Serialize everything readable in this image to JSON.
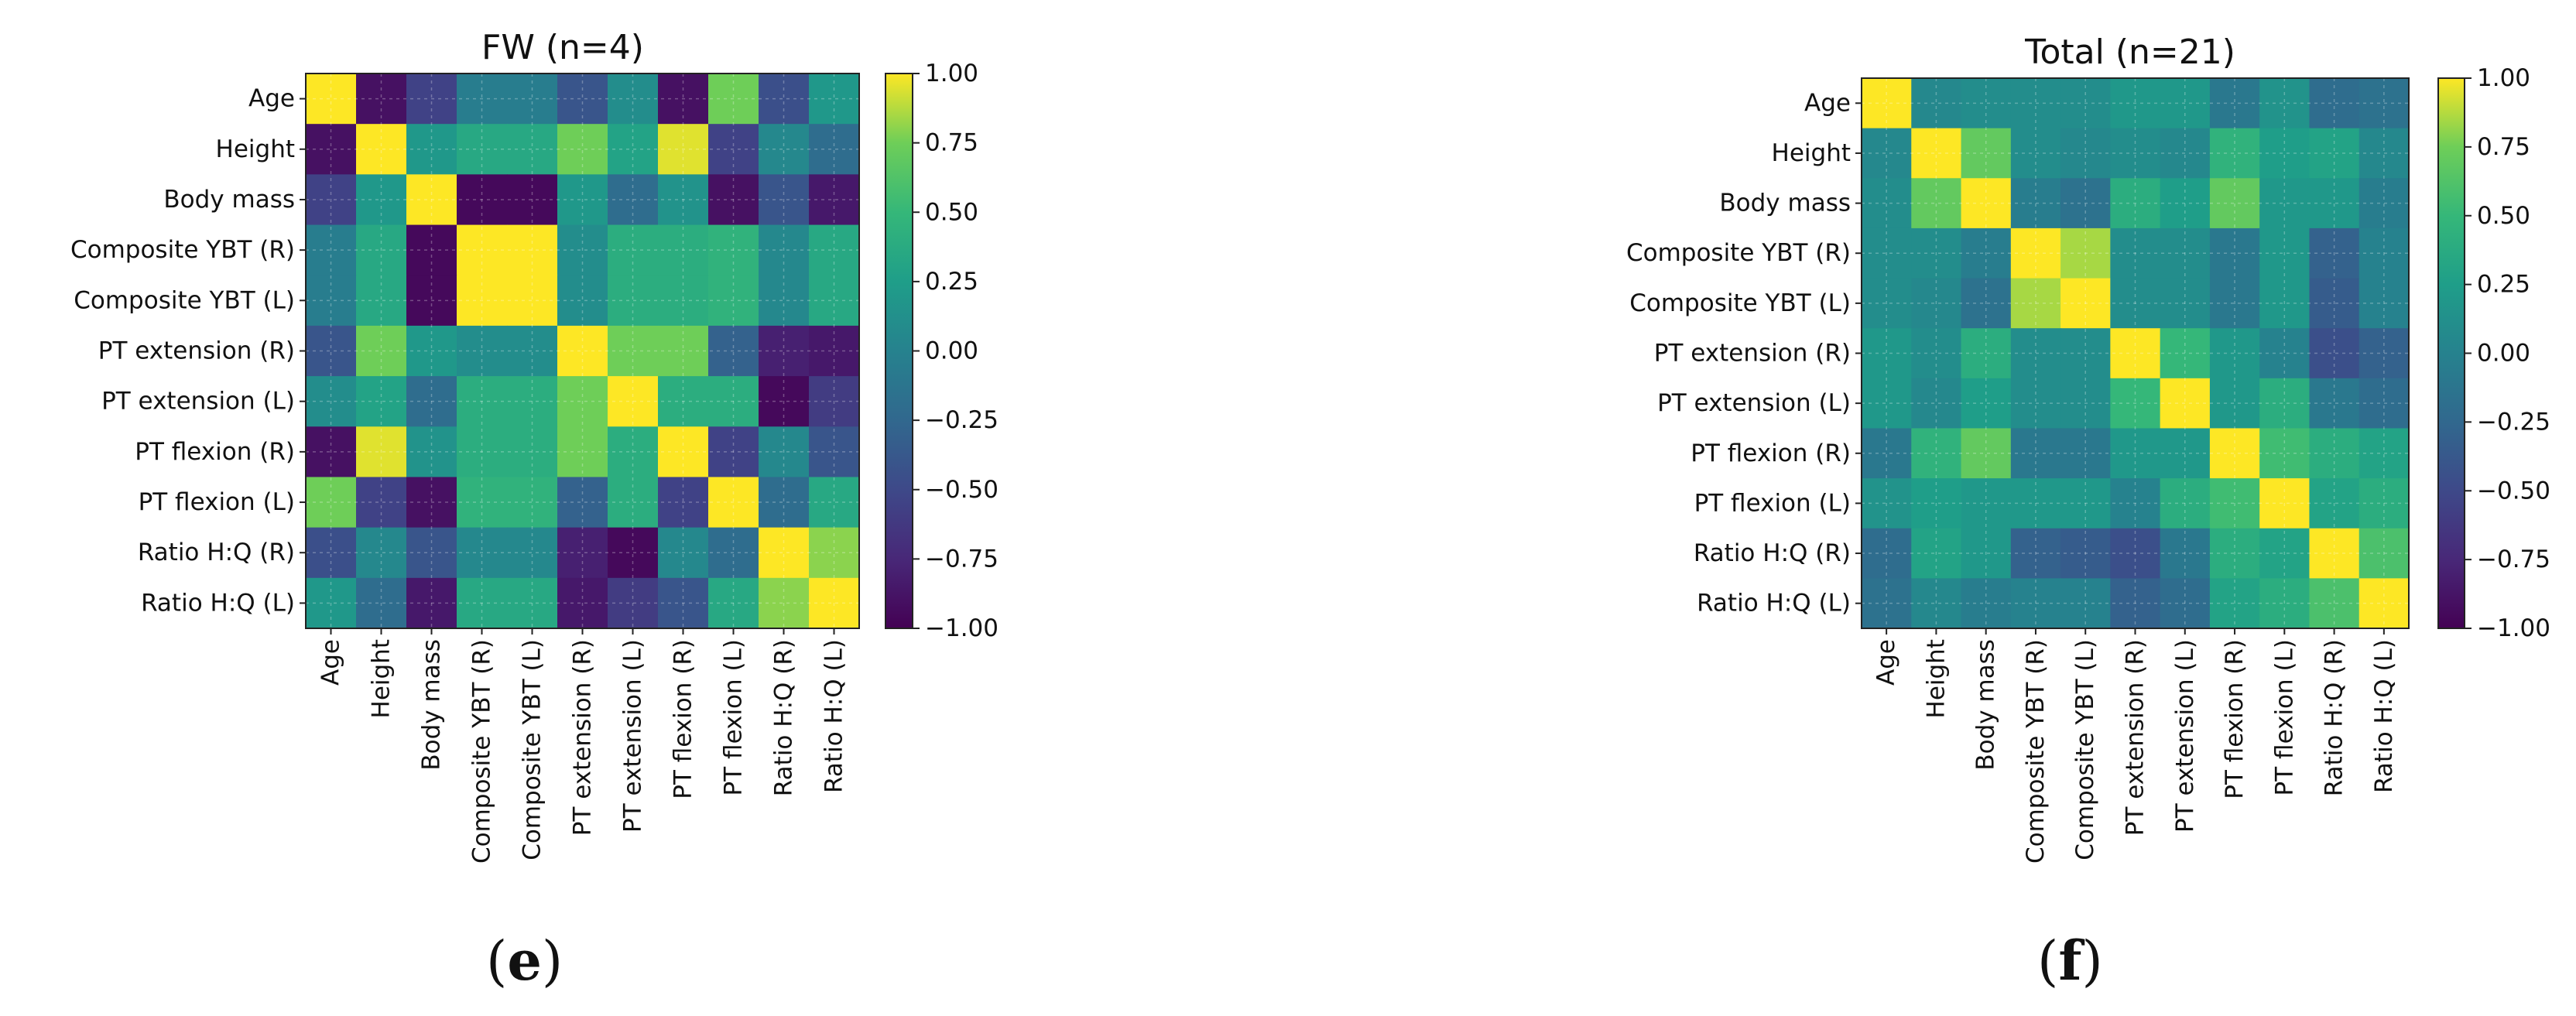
{
  "chart_data": [
    {
      "type": "heatmap",
      "title": "FW (n=4)",
      "panel_label": {
        "open": "(",
        "letter": "e",
        "close": ")"
      },
      "labels": [
        "Age",
        "Height",
        "Body mass",
        "Composite YBT (R)",
        "Composite YBT (L)",
        "PT extension (R)",
        "PT extension (L)",
        "PT flexion (R)",
        "PT flexion (L)",
        "Ratio H:Q (R)",
        "Ratio H:Q (L)"
      ],
      "vmin": -1.0,
      "vmax": 1.0,
      "colormap": "viridis",
      "colorbar_ticks": [
        "1.00",
        "0.75",
        "0.50",
        "0.25",
        "0.00",
        "−0.25",
        "−0.50",
        "−0.75",
        "−1.00"
      ],
      "matrix": [
        [
          1.0,
          -0.9,
          -0.55,
          -0.05,
          -0.05,
          -0.4,
          0.1,
          -0.9,
          0.75,
          -0.45,
          0.2
        ],
        [
          -0.9,
          1.0,
          0.2,
          0.35,
          0.35,
          0.75,
          0.3,
          0.95,
          -0.55,
          0.05,
          -0.2
        ],
        [
          -0.55,
          0.2,
          1.0,
          -0.95,
          -0.95,
          0.2,
          -0.2,
          0.15,
          -0.9,
          -0.4,
          -0.85
        ],
        [
          -0.05,
          0.35,
          -0.95,
          1.0,
          1.0,
          0.1,
          0.4,
          0.4,
          0.45,
          0.05,
          0.35
        ],
        [
          -0.05,
          0.35,
          -0.95,
          1.0,
          1.0,
          0.1,
          0.4,
          0.4,
          0.45,
          0.05,
          0.35
        ],
        [
          -0.4,
          0.75,
          0.2,
          0.1,
          0.1,
          1.0,
          0.75,
          0.75,
          -0.3,
          -0.8,
          -0.85
        ],
        [
          0.1,
          0.3,
          -0.2,
          0.4,
          0.4,
          0.75,
          1.0,
          0.4,
          0.4,
          -0.95,
          -0.6
        ],
        [
          -0.9,
          0.95,
          0.15,
          0.4,
          0.4,
          0.75,
          0.4,
          1.0,
          -0.55,
          0.05,
          -0.4
        ],
        [
          0.75,
          -0.55,
          -0.9,
          0.45,
          0.45,
          -0.3,
          0.4,
          -0.55,
          1.0,
          -0.2,
          0.35
        ],
        [
          -0.45,
          0.05,
          -0.4,
          0.05,
          0.05,
          -0.8,
          -0.95,
          0.05,
          -0.2,
          1.0,
          0.8
        ],
        [
          0.2,
          -0.2,
          -0.85,
          0.35,
          0.35,
          -0.85,
          -0.6,
          -0.4,
          0.35,
          0.8,
          1.0
        ]
      ]
    },
    {
      "type": "heatmap",
      "title": "Total (n=21)",
      "panel_label": {
        "open": "(",
        "letter": "f",
        "close": ")"
      },
      "labels": [
        "Age",
        "Height",
        "Body mass",
        "Composite YBT (R)",
        "Composite YBT (L)",
        "PT extension (R)",
        "PT extension (L)",
        "PT flexion (R)",
        "PT flexion (L)",
        "Ratio H:Q (R)",
        "Ratio H:Q (L)"
      ],
      "vmin": -1.0,
      "vmax": 1.0,
      "colormap": "viridis",
      "colorbar_ticks": [
        "1.00",
        "0.75",
        "0.50",
        "0.25",
        "0.00",
        "−0.25",
        "−0.50",
        "−0.75",
        "−1.00"
      ],
      "matrix": [
        [
          1.0,
          0.05,
          0.1,
          0.1,
          0.1,
          0.2,
          0.2,
          -0.1,
          0.15,
          -0.2,
          -0.15
        ],
        [
          0.05,
          1.0,
          0.7,
          0.1,
          0.05,
          0.1,
          0.05,
          0.45,
          0.25,
          0.3,
          0.05
        ],
        [
          0.1,
          0.7,
          1.0,
          -0.05,
          -0.15,
          0.4,
          0.25,
          0.7,
          0.2,
          0.2,
          -0.05
        ],
        [
          0.1,
          0.1,
          -0.05,
          1.0,
          0.85,
          0.1,
          0.1,
          -0.1,
          0.2,
          -0.3,
          0.0
        ],
        [
          0.1,
          0.05,
          -0.15,
          0.85,
          1.0,
          0.1,
          0.1,
          -0.1,
          0.2,
          -0.35,
          0.0
        ],
        [
          0.2,
          0.1,
          0.4,
          0.1,
          0.1,
          1.0,
          0.5,
          0.2,
          0.0,
          -0.45,
          -0.3
        ],
        [
          0.2,
          0.05,
          0.25,
          0.1,
          0.1,
          0.5,
          1.0,
          0.2,
          0.4,
          -0.1,
          -0.2
        ],
        [
          -0.1,
          0.45,
          0.7,
          -0.1,
          -0.1,
          0.2,
          0.2,
          1.0,
          0.55,
          0.4,
          0.3
        ],
        [
          0.15,
          0.25,
          0.2,
          0.2,
          0.2,
          0.0,
          0.4,
          0.55,
          1.0,
          0.3,
          0.4
        ],
        [
          -0.2,
          0.3,
          0.2,
          -0.3,
          -0.35,
          -0.45,
          -0.1,
          0.4,
          0.3,
          1.0,
          0.6
        ],
        [
          -0.15,
          0.05,
          -0.05,
          0.0,
          0.0,
          -0.3,
          -0.2,
          0.3,
          0.4,
          0.6,
          1.0
        ]
      ]
    }
  ]
}
